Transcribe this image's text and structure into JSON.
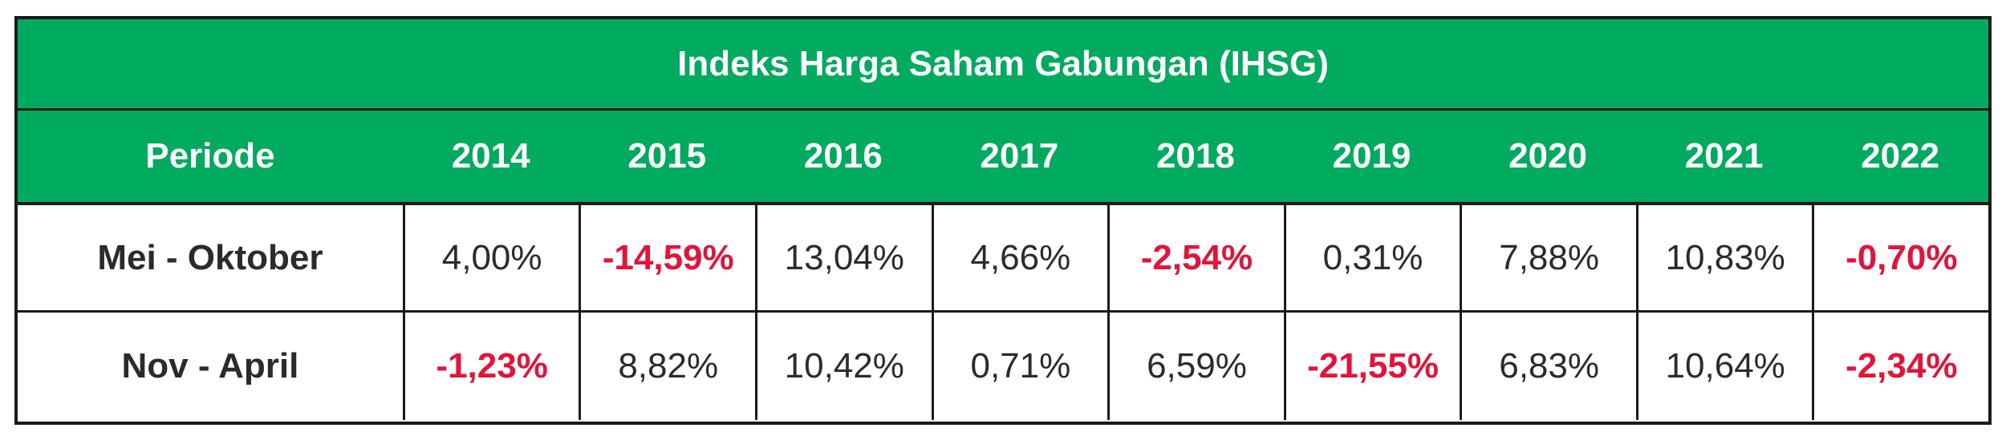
{
  "title": "Indeks Harga Saham Gabungan (IHSG)",
  "header": {
    "period_label": "Periode",
    "years": [
      "2014",
      "2015",
      "2016",
      "2017",
      "2018",
      "2019",
      "2020",
      "2021",
      "2022"
    ]
  },
  "rows": [
    {
      "label": "Mei - Oktober",
      "values": [
        "4,00%",
        "-14,59%",
        "13,04%",
        "4,66%",
        "-2,54%",
        "0,31%",
        "7,88%",
        "10,83%",
        "-0,70%"
      ]
    },
    {
      "label": "Nov - April",
      "values": [
        "-1,23%",
        "8,82%",
        "10,42%",
        "0,71%",
        "6,59%",
        "-21,55%",
        "6,83%",
        "10,64%",
        "-2,34%"
      ]
    }
  ],
  "colors": {
    "header_bg": "#00ab5f",
    "header_text": "#ffffff",
    "negative": "#e5133a",
    "positive": "#2b2b2b",
    "border": "#1a1a1a"
  }
}
